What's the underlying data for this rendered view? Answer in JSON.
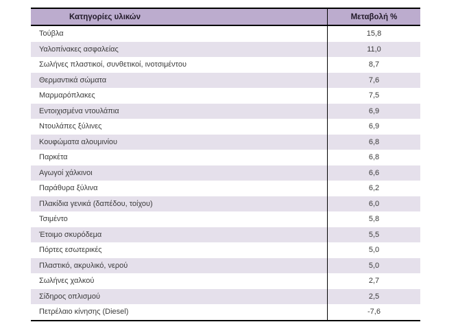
{
  "chart_data": {
    "type": "table",
    "title": "",
    "columns": [
      "Κατηγορίες υλικών",
      "Μεταβολή %"
    ],
    "categories": [
      "Τούβλα",
      "Υαλοπίνακες ασφαλείας",
      "Σωλήνες πλαστικοί, συνθετικοί, ινοτσιμέντου",
      "Θερμαντικά σώματα",
      "Μαρμαρόπλακες",
      "Εντοιχισμένα ντουλάπια",
      "Ντουλάπες ξύλινες",
      "Κουφώματα αλουμινίου",
      "Παρκέτα",
      "Αγωγοί χάλκινοι",
      "Παράθυρα ξύλινα",
      "Πλακίδια γενικά (δαπέδου, τοίχου)",
      "Τσιμέντο",
      "Έτοιμο σκυρόδεμα",
      "Πόρτες εσωτερικές",
      "Πλαστικό, ακρυλικό, νερού",
      "Σωλήνες χαλκού",
      "Σίδηρος οπλισμού",
      "Πετρέλαιο κίνησης (Diesel)"
    ],
    "values": [
      15.8,
      11.0,
      8.7,
      7.6,
      7.5,
      6.9,
      6.9,
      6.8,
      6.8,
      6.6,
      6.2,
      6.0,
      5.8,
      5.5,
      5.0,
      5.0,
      2.7,
      2.5,
      -7.6
    ],
    "value_format": "comma-decimal"
  },
  "table": {
    "header": {
      "category_label": "Κατηγορίες υλικών",
      "change_label": "Μεταβολή %"
    },
    "rows": [
      {
        "category": "Τούβλα",
        "change": "15,8"
      },
      {
        "category": "Υαλοπίνακες ασφαλείας",
        "change": "11,0"
      },
      {
        "category": "Σωλήνες πλαστικοί, συνθετικοί, ινοτσιμέντου",
        "change": "8,7"
      },
      {
        "category": "Θερμαντικά σώματα",
        "change": "7,6"
      },
      {
        "category": "Μαρμαρόπλακες",
        "change": "7,5"
      },
      {
        "category": "Εντοιχισμένα ντουλάπια",
        "change": "6,9"
      },
      {
        "category": "Ντουλάπες ξύλινες",
        "change": "6,9"
      },
      {
        "category": "Κουφώματα αλουμινίου",
        "change": "6,8"
      },
      {
        "category": "Παρκέτα",
        "change": "6,8"
      },
      {
        "category": "Αγωγοί χάλκινοι",
        "change": "6,6"
      },
      {
        "category": "Παράθυρα ξύλινα",
        "change": "6,2"
      },
      {
        "category": "Πλακίδια γενικά (δαπέδου, τοίχου)",
        "change": "6,0"
      },
      {
        "category": "Τσιμέντο",
        "change": "5,8"
      },
      {
        "category": "Έτοιμο σκυρόδεμα",
        "change": "5,5"
      },
      {
        "category": "Πόρτες εσωτερικές",
        "change": "5,0"
      },
      {
        "category": "Πλαστικό, ακρυλικό, νερού",
        "change": "5,0"
      },
      {
        "category": "Σωλήνες χαλκού",
        "change": "2,7"
      },
      {
        "category": "Σίδηρος οπλισμού",
        "change": "2,5"
      },
      {
        "category": "Πετρέλαιο κίνησης (Diesel)",
        "change": "-7,6"
      }
    ]
  },
  "colors": {
    "header_bg": "#bcacce",
    "row_alt_bg": "#e5e0eb",
    "row_bg": "#ffffff",
    "border": "#000000",
    "text": "#3a3a3a",
    "header_text": "#211a28"
  }
}
